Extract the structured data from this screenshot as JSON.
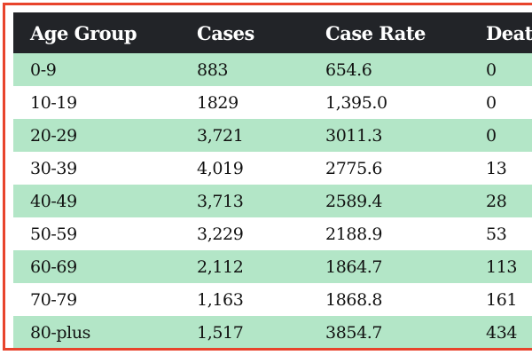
{
  "table": {
    "headers": [
      "Age Group",
      "Cases",
      "Case Rate",
      "Deaths"
    ],
    "rows": [
      [
        "0-9",
        "883",
        "654.6",
        "0"
      ],
      [
        "10-19",
        "1829",
        "1,395.0",
        "0"
      ],
      [
        "20-29",
        "3,721",
        "3011.3",
        "0"
      ],
      [
        "30-39",
        "4,019",
        "2775.6",
        "13"
      ],
      [
        "40-49",
        "3,713",
        "2589.4",
        "28"
      ],
      [
        "50-59",
        "3,229",
        "2188.9",
        "53"
      ],
      [
        "60-69",
        "2,112",
        "1864.7",
        "113"
      ],
      [
        "70-79",
        "1,163",
        "1868.8",
        "161"
      ],
      [
        "80-plus",
        "1,517",
        "3854.7",
        "434"
      ]
    ]
  },
  "colors": {
    "header_bg": "#222428",
    "stripe": "#b3e6c7",
    "border": "#e8442c"
  }
}
